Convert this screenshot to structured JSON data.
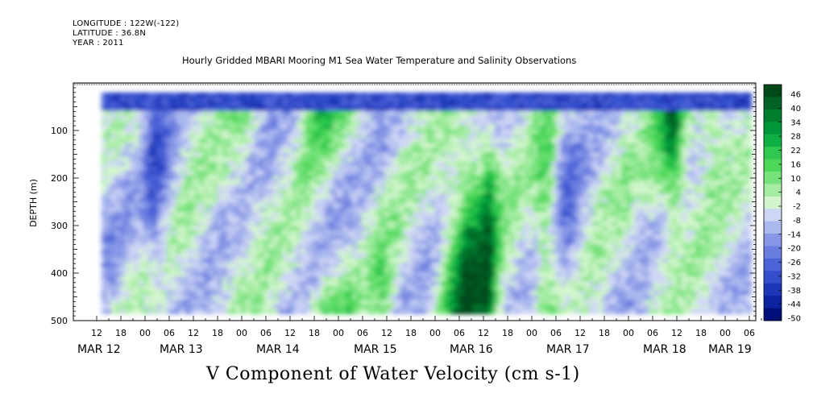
{
  "header": {
    "longitude": "LONGITUDE : 122W(-122)",
    "latitude": "LATITUDE : 36.8N",
    "year": "YEAR : 2011"
  },
  "chart_data": {
    "type": "heatmap",
    "title": "Hourly Gridded MBARI Mooring M1 Sea Water Temperature and Salinity Observations",
    "variable_title": "V Component of Water Velocity (cm s-1)",
    "ylabel": "DEPTH (m)",
    "ylim": [
      500,
      0
    ],
    "y_ticks": [
      100,
      200,
      300,
      400,
      500
    ],
    "data_depth_range": [
      20,
      485
    ],
    "x_hour_tick_labels": [
      "12",
      "18",
      "00",
      "06",
      "12",
      "18",
      "00",
      "06",
      "12",
      "18",
      "00",
      "06",
      "12",
      "18",
      "00",
      "06",
      "12",
      "18",
      "00",
      "06",
      "12",
      "18",
      "00",
      "06",
      "12",
      "18",
      "00",
      "06"
    ],
    "x_date_labels": [
      "MAR 12",
      "MAR 13",
      "MAR 14",
      "MAR 15",
      "MAR 16",
      "MAR 17",
      "MAR 18",
      "MAR 19"
    ],
    "colorbar": {
      "labels": [
        "46",
        "40",
        "34",
        "28",
        "22",
        "16",
        "10",
        "4",
        "-2",
        "-8",
        "-14",
        "-20",
        "-26",
        "-32",
        "-38",
        "-44",
        "-50"
      ],
      "range": [
        -50,
        49
      ],
      "colors": [
        "#004a1a",
        "#006325",
        "#007d2f",
        "#00963a",
        "#0fb043",
        "#2ec94e",
        "#4ed85a",
        "#76e27c",
        "#a5eca3",
        "#d2f5cd",
        "#cfd6f5",
        "#aab8ee",
        "#8898e6",
        "#6a7de0",
        "#4d63d8",
        "#334dcb",
        "#1d36b6",
        "#0b22a1",
        "#000e7a"
      ]
    }
  }
}
